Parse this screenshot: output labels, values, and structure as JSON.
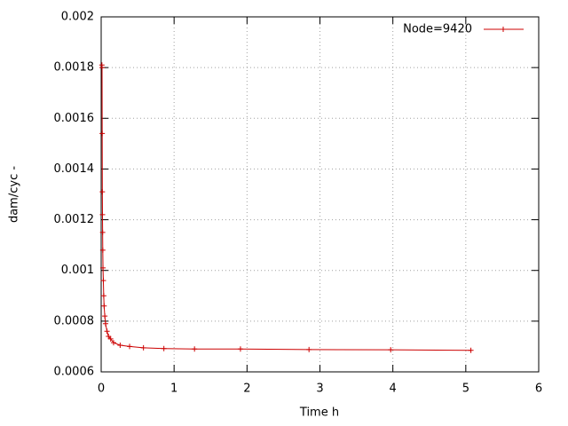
{
  "chart_data": {
    "type": "line",
    "xlabel": "Time h",
    "ylabel": "dam/cyc -",
    "series": [
      {
        "name": "Node=9420",
        "color": "#cc0000",
        "x": [
          0.01,
          0.012,
          0.014,
          0.016,
          0.018,
          0.02,
          0.022,
          0.025,
          0.03,
          0.035,
          0.04,
          0.05,
          0.06,
          0.08,
          0.1,
          0.13,
          0.17,
          0.26,
          0.39,
          0.58,
          0.86,
          1.28,
          1.91,
          2.85,
          3.97,
          5.07
        ],
        "values": [
          0.00181,
          0.0018,
          0.00154,
          0.00131,
          0.00122,
          0.00115,
          0.00108,
          0.00101,
          0.00096,
          0.0009,
          0.00086,
          0.00082,
          0.00079,
          0.00076,
          0.00074,
          0.00073,
          0.000715,
          0.000705,
          0.0007,
          0.000695,
          0.000692,
          0.00069,
          0.00069,
          0.000688,
          0.000687,
          0.000685
        ]
      }
    ],
    "xlim": [
      0,
      6
    ],
    "xticks": [
      0,
      1,
      2,
      3,
      4,
      5,
      6
    ],
    "ylim": [
      0.0006,
      0.002
    ],
    "yticks": [
      0.0006,
      0.0008,
      0.001,
      0.0012,
      0.0014,
      0.0016,
      0.0018,
      0.002
    ],
    "grid": true,
    "legend": "top-right"
  }
}
